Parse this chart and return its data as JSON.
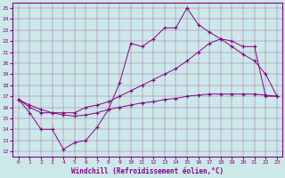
{
  "xlabel": "Windchill (Refroidissement éolien,°C)",
  "bg_color": "#cce8e8",
  "line_color": "#880088",
  "xlim": [
    -0.5,
    23.5
  ],
  "ylim": [
    11.5,
    25.5
  ],
  "yticks": [
    12,
    13,
    14,
    15,
    16,
    17,
    18,
    19,
    20,
    21,
    22,
    23,
    24,
    25
  ],
  "xticks": [
    0,
    1,
    2,
    3,
    4,
    5,
    6,
    7,
    8,
    9,
    10,
    11,
    12,
    13,
    14,
    15,
    16,
    17,
    18,
    19,
    20,
    21,
    22,
    23
  ],
  "line1_x": [
    0,
    1,
    2,
    3,
    4,
    5,
    6,
    7,
    8,
    9,
    10,
    11,
    12,
    13,
    14,
    15,
    16,
    17,
    18,
    19,
    20,
    21,
    22,
    23
  ],
  "line1_y": [
    16.7,
    15.5,
    14.0,
    14.0,
    12.2,
    12.8,
    13.0,
    14.2,
    15.8,
    18.2,
    21.8,
    21.5,
    22.2,
    23.2,
    23.2,
    25.0,
    23.5,
    22.8,
    22.2,
    21.5,
    20.8,
    20.2,
    19.0,
    17.0
  ],
  "line2_x": [
    0,
    1,
    2,
    3,
    4,
    5,
    6,
    7,
    8,
    9,
    10,
    11,
    12,
    13,
    14,
    15,
    16,
    17,
    18,
    19,
    20,
    21,
    22,
    23
  ],
  "line2_y": [
    16.7,
    16.0,
    15.5,
    15.5,
    15.5,
    15.5,
    16.0,
    16.2,
    16.5,
    17.0,
    17.5,
    18.0,
    18.5,
    19.0,
    19.5,
    20.2,
    21.0,
    21.8,
    22.2,
    22.0,
    21.5,
    21.5,
    17.0,
    17.0
  ],
  "line3_x": [
    0,
    1,
    2,
    3,
    4,
    5,
    6,
    7,
    8,
    9,
    10,
    11,
    12,
    13,
    14,
    15,
    16,
    17,
    18,
    19,
    20,
    21,
    22,
    23
  ],
  "line3_y": [
    16.7,
    16.2,
    15.8,
    15.5,
    15.3,
    15.2,
    15.3,
    15.5,
    15.8,
    16.0,
    16.2,
    16.4,
    16.5,
    16.7,
    16.8,
    17.0,
    17.1,
    17.2,
    17.2,
    17.2,
    17.2,
    17.2,
    17.1,
    17.0
  ]
}
